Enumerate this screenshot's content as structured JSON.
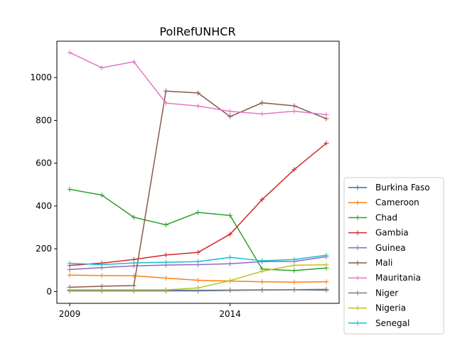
{
  "chart_data": {
    "type": "line",
    "title": "PolRefUNHCR",
    "xlabel": "",
    "ylabel": "",
    "x": [
      2009,
      2010,
      2011,
      2012,
      2013,
      2014,
      2015,
      2016,
      2017
    ],
    "xlim": [
      2008.6,
      2017.4
    ],
    "ylim": [
      -55,
      1170
    ],
    "x_ticks": [
      2009,
      2014
    ],
    "y_ticks": [
      0,
      200,
      400,
      600,
      800,
      1000
    ],
    "grid": false,
    "legend_position": "lower right, outside plot",
    "marker": "+",
    "series": [
      {
        "name": "Burkina Faso",
        "color": "#1f77b4",
        "values": [
          5,
          5,
          5,
          6,
          6,
          7,
          8,
          9,
          10
        ]
      },
      {
        "name": "Cameroon",
        "color": "#ff7f0e",
        "values": [
          77,
          75,
          74,
          63,
          53,
          49,
          46,
          44,
          46
        ]
      },
      {
        "name": "Chad",
        "color": "#2ca02c",
        "values": [
          478,
          451,
          347,
          312,
          370,
          356,
          105,
          98,
          110
        ]
      },
      {
        "name": "Gambia",
        "color": "#d62728",
        "values": [
          122,
          133,
          150,
          171,
          183,
          268,
          430,
          570,
          693
        ]
      },
      {
        "name": "Guinea",
        "color": "#9467bd",
        "values": [
          103,
          112,
          120,
          124,
          126,
          130,
          140,
          141,
          163
        ]
      },
      {
        "name": "Mali",
        "color": "#8c564b",
        "values": [
          20,
          25,
          28,
          937,
          928,
          818,
          882,
          868,
          808
        ]
      },
      {
        "name": "Mauritania",
        "color": "#e377c2",
        "values": [
          1117,
          1046,
          1074,
          881,
          867,
          842,
          830,
          843,
          827
        ]
      },
      {
        "name": "Niger",
        "color": "#7f7f7f",
        "values": [
          3,
          3,
          3,
          3,
          3,
          5,
          7,
          8,
          6
        ]
      },
      {
        "name": "Nigeria",
        "color": "#bcbd22",
        "values": [
          8,
          8,
          8,
          8,
          17,
          51,
          95,
          123,
          125
        ]
      },
      {
        "name": "Senegal",
        "color": "#17becf",
        "values": [
          132,
          126,
          134,
          137,
          140,
          160,
          144,
          150,
          170
        ]
      }
    ]
  }
}
